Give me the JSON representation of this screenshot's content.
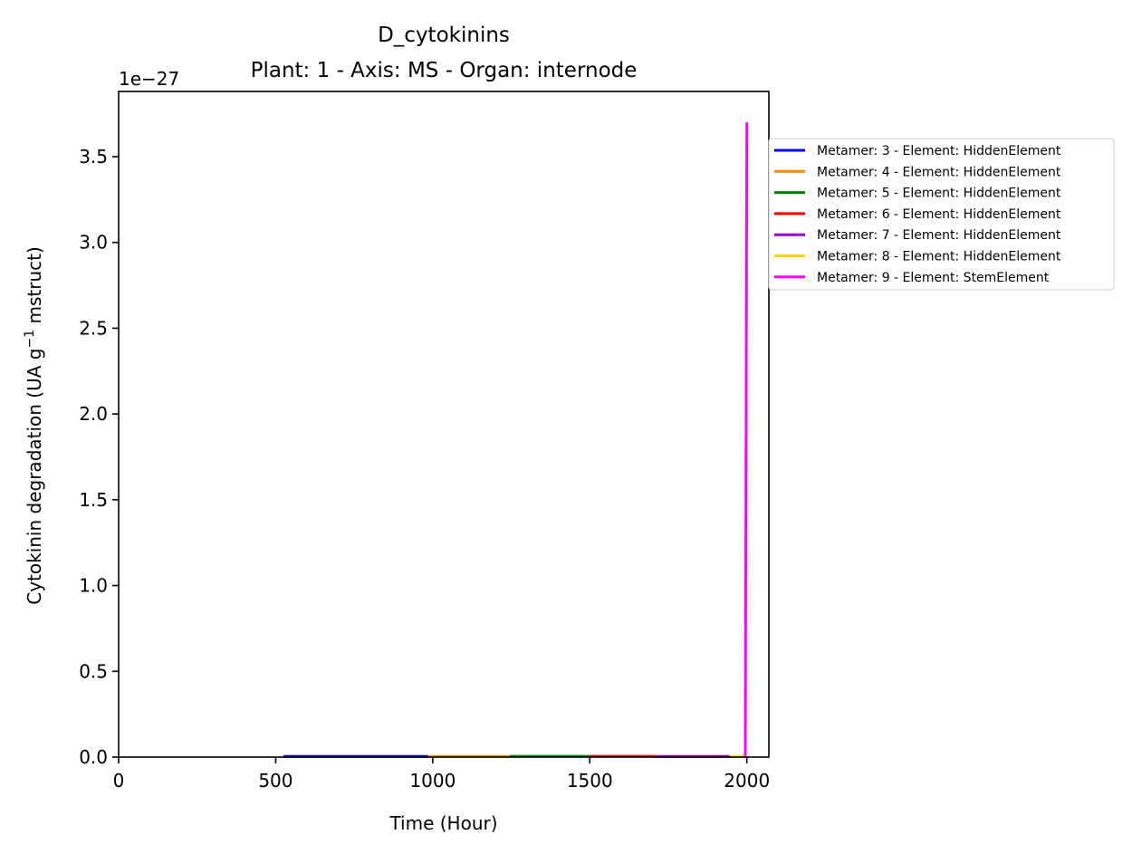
{
  "chart_data": {
    "type": "line",
    "title": "D_cytokinins",
    "subtitle": "Plant: 1 - Axis: MS - Organ: internode",
    "xlabel": "Time (Hour)",
    "ylabel_main": "Cytokinin degradation (UA g",
    "ylabel_sup": "−1",
    "ylabel_tail": " mstruct)",
    "offset_text": "1e−27",
    "xlim": [
      0,
      2070
    ],
    "ylim": [
      0,
      3.88
    ],
    "xticks": [
      0,
      500,
      1000,
      1500,
      2000
    ],
    "xtick_labels": [
      "0",
      "500",
      "1000",
      "1500",
      "2000"
    ],
    "yticks": [
      0,
      0.5,
      1.0,
      1.5,
      2.0,
      2.5,
      3.0,
      3.5
    ],
    "ytick_labels": [
      "0.0",
      "0.5",
      "1.0",
      "1.5",
      "2.0",
      "2.5",
      "3.0",
      "3.5"
    ],
    "grid": false,
    "legend_position": "right, outside plot",
    "series": [
      {
        "name": "Metamer: 3 - Element: HiddenElement",
        "color": "#0000ff",
        "x": [
          525,
          985
        ],
        "y": [
          0.004,
          0.004
        ]
      },
      {
        "name": "Metamer: 4 - Element: HiddenElement",
        "color": "#ff8c00",
        "x": [
          985,
          1245
        ],
        "y": [
          0.004,
          0.004
        ]
      },
      {
        "name": "Metamer: 5 - Element: HiddenElement",
        "color": "#008000",
        "x": [
          1245,
          1500
        ],
        "y": [
          0.005,
          0.005
        ]
      },
      {
        "name": "Metamer: 6 - Element: HiddenElement",
        "color": "#ff0000",
        "x": [
          1500,
          1715
        ],
        "y": [
          0.005,
          0.005
        ]
      },
      {
        "name": "Metamer: 7 - Element: HiddenElement",
        "color": "#9400d3",
        "x": [
          1715,
          1945
        ],
        "y": [
          0.004,
          0.004
        ]
      },
      {
        "name": "Metamer: 8 - Element: HiddenElement",
        "color": "#ffd700",
        "x": [
          1945,
          1995
        ],
        "y": [
          0.003,
          0.003
        ]
      },
      {
        "name": "Metamer: 9 - Element: StemElement",
        "color": "#ff00ff",
        "x": [
          1995,
          2000
        ],
        "y": [
          0.0,
          3.7
        ]
      }
    ]
  }
}
